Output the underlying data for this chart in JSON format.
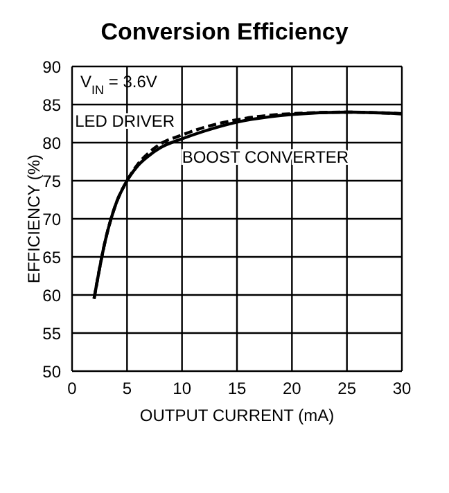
{
  "chart_data": {
    "type": "line",
    "title": "Conversion Efficiency",
    "xlabel": "OUTPUT CURRENT (mA)",
    "ylabel": "EFFICIENCY (%)",
    "annotations": [
      "V$_{IN}$ = 3.6V"
    ],
    "x": [
      2,
      3,
      4,
      5,
      6,
      7,
      8,
      10,
      12,
      15,
      18,
      20,
      25,
      30
    ],
    "series": [
      {
        "name": "LED DRIVER",
        "color": "#000000",
        "line_style": "solid",
        "values": [
          59.5,
          67,
          72,
          75,
          77,
          78.3,
          79.3,
          80.5,
          81.5,
          82.7,
          83.4,
          83.7,
          84,
          83.8
        ]
      },
      {
        "name": "BOOST CONVERTER",
        "color": "#000000",
        "line_style": "dashed",
        "values": [
          59.5,
          67,
          72,
          75,
          77.2,
          78.7,
          79.8,
          81,
          82,
          83,
          83.6,
          83.8,
          84,
          83.8
        ]
      }
    ],
    "xlim": [
      0,
      30
    ],
    "xticks": [
      0,
      5,
      10,
      15,
      20,
      25,
      30
    ],
    "ylim": [
      50,
      90
    ],
    "yticks": [
      50,
      55,
      60,
      65,
      70,
      75,
      80,
      85,
      90
    ],
    "grid": true,
    "legend": false
  }
}
